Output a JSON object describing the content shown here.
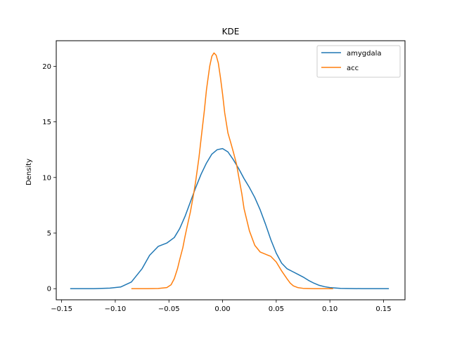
{
  "chart_data": {
    "type": "line",
    "title": "KDE",
    "xlabel": "",
    "ylabel": "Density",
    "xlim": [
      -0.155,
      0.17
    ],
    "ylim": [
      -1.0,
      22.3
    ],
    "xticks": [
      -0.15,
      -0.1,
      -0.05,
      0.0,
      0.05,
      0.1,
      0.15
    ],
    "xtick_labels": [
      "−0.15",
      "−0.10",
      "−0.05",
      "0.00",
      "0.05",
      "0.10",
      "0.15"
    ],
    "yticks": [
      0,
      5,
      10,
      15,
      20
    ],
    "ytick_labels": [
      "0",
      "5",
      "10",
      "15",
      "20"
    ],
    "grid": false,
    "legend_position": "top-right",
    "series": [
      {
        "name": "amygdala",
        "color": "#1f77b4",
        "x": [
          -0.142,
          -0.12,
          -0.105,
          -0.095,
          -0.085,
          -0.075,
          -0.068,
          -0.06,
          -0.052,
          -0.045,
          -0.04,
          -0.035,
          -0.03,
          -0.025,
          -0.02,
          -0.015,
          -0.01,
          -0.005,
          0.0,
          0.005,
          0.01,
          0.015,
          0.02,
          0.025,
          0.03,
          0.035,
          0.04,
          0.045,
          0.05,
          0.055,
          0.06,
          0.065,
          0.07,
          0.075,
          0.08,
          0.085,
          0.09,
          0.095,
          0.1,
          0.11,
          0.13,
          0.155
        ],
        "y": [
          0.0,
          0.0,
          0.05,
          0.15,
          0.6,
          1.8,
          3.0,
          3.8,
          4.1,
          4.6,
          5.4,
          6.5,
          7.8,
          9.1,
          10.3,
          11.3,
          12.1,
          12.5,
          12.6,
          12.3,
          11.6,
          10.8,
          9.9,
          9.1,
          8.2,
          7.1,
          5.8,
          4.4,
          3.2,
          2.3,
          1.8,
          1.55,
          1.3,
          1.05,
          0.75,
          0.5,
          0.3,
          0.18,
          0.1,
          0.03,
          0.0,
          0.0
        ]
      },
      {
        "name": "acc",
        "color": "#ff7f0e",
        "x": [
          -0.085,
          -0.07,
          -0.06,
          -0.052,
          -0.048,
          -0.045,
          -0.042,
          -0.04,
          -0.037,
          -0.035,
          -0.033,
          -0.03,
          -0.027,
          -0.025,
          -0.022,
          -0.02,
          -0.017,
          -0.015,
          -0.012,
          -0.01,
          -0.008,
          -0.006,
          -0.004,
          -0.002,
          0.0,
          0.002,
          0.005,
          0.008,
          0.01,
          0.013,
          0.015,
          0.018,
          0.02,
          0.025,
          0.03,
          0.035,
          0.04,
          0.045,
          0.05,
          0.055,
          0.06,
          0.063,
          0.066,
          0.07,
          0.075,
          0.085,
          0.103
        ],
        "y": [
          0.0,
          0.0,
          0.02,
          0.1,
          0.35,
          0.9,
          1.8,
          2.6,
          3.7,
          4.7,
          5.6,
          6.9,
          8.5,
          9.7,
          11.8,
          13.5,
          16.0,
          17.9,
          20.0,
          20.9,
          21.2,
          21.0,
          20.3,
          19.0,
          17.5,
          15.8,
          14.0,
          13.0,
          12.3,
          11.2,
          10.1,
          8.5,
          7.2,
          5.2,
          3.9,
          3.3,
          3.1,
          2.9,
          2.4,
          1.6,
          0.9,
          0.5,
          0.25,
          0.1,
          0.03,
          0.0,
          0.0
        ]
      }
    ]
  }
}
